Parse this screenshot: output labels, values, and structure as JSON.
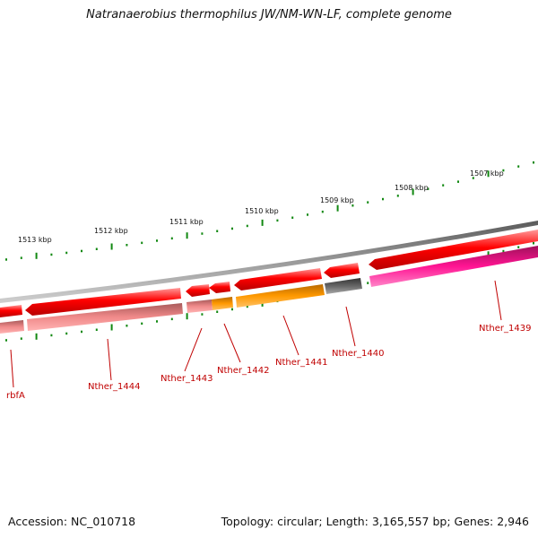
{
  "title": "Natranaerobius thermophilus JW/NM-WN-LF, complete genome",
  "accession": "Accession: NC_010718",
  "topology": "Topology: circular; Length: 3,165,557 bp; Genes: 2,946",
  "colors": {
    "backbone": "#8c8c8c",
    "gene_forward": "#ff0000",
    "gene_pink": "#ff69b4",
    "gene_orange": "#ff9900",
    "gene_gray": "#666666",
    "gene_magenta": "#ff3fa6",
    "tick": "#118811",
    "label": "#c00000"
  },
  "ticks": [
    {
      "label": "1513 kbp"
    },
    {
      "label": "1512 kbp"
    },
    {
      "label": "1511 kbp"
    },
    {
      "label": "1510 kbp"
    },
    {
      "label": "1509 kbp"
    },
    {
      "label": "1508 kbp"
    },
    {
      "label": "1507 kbp"
    }
  ],
  "genes": [
    {
      "label": "rbfA"
    },
    {
      "label": "Nther_1444"
    },
    {
      "label": "Nther_1443"
    },
    {
      "label": "Nther_1442"
    },
    {
      "label": "Nther_1441"
    },
    {
      "label": "Nther_1440"
    },
    {
      "label": "Nther_1439"
    }
  ]
}
